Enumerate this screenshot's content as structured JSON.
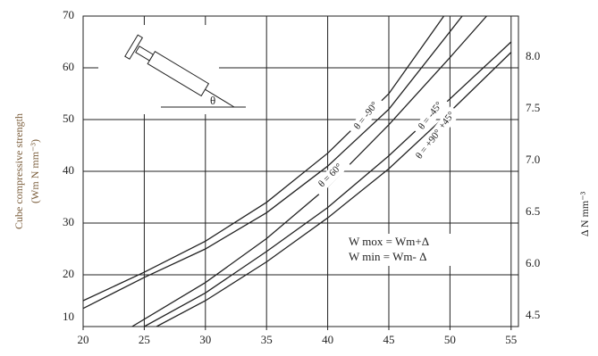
{
  "chart_data": {
    "type": "line",
    "y_label_line1": "Cube compressive strength",
    "y_label_line2": "(Wm N mm⁻³)",
    "y2_label": "Δ N mm⁻³",
    "xlim": [
      20,
      55.6
    ],
    "xticks": [
      20,
      25,
      30,
      35,
      40,
      45,
      50,
      55
    ],
    "ylim": [
      10,
      70
    ],
    "yticks": [
      10,
      20,
      30,
      40,
      50,
      60,
      70
    ],
    "delta_labels": [
      "4.5",
      "6.0",
      "6.5",
      "7.0",
      "7.5",
      "8.0"
    ],
    "grid": true,
    "annotation_line1": "W  mox = Wm+Δ",
    "annotation_line2": "W  min = Wm- Δ",
    "inset_angle_label": "θ",
    "series": [
      {
        "name": "θ = -90°",
        "color": "#222",
        "x": [
          20,
          25,
          30,
          35,
          40,
          45,
          49.5
        ],
        "values": [
          15,
          20.5,
          26.5,
          34,
          43.5,
          55,
          70
        ]
      },
      {
        "name": "θ = -45°",
        "color": "#222",
        "x": [
          20,
          25,
          30,
          35,
          40,
          45,
          51
        ],
        "values": [
          13.5,
          19.5,
          25,
          32,
          41,
          52,
          70
        ]
      },
      {
        "name": "θ = 60°",
        "color": "#222",
        "x": [
          24,
          30,
          35,
          40,
          45,
          50,
          53
        ],
        "values": [
          10,
          18.5,
          27,
          37,
          49,
          62,
          70
        ]
      },
      {
        "name": "θ = +45°",
        "color": "#222",
        "x": [
          25,
          30,
          35,
          40,
          45,
          50,
          55
        ],
        "values": [
          10,
          16.5,
          24.5,
          33,
          43,
          54,
          65
        ]
      },
      {
        "name": "θ = +90°",
        "color": "#222",
        "x": [
          26,
          30,
          35,
          40,
          45,
          50,
          55
        ],
        "values": [
          10,
          15,
          22.5,
          31,
          40.5,
          51.5,
          63
        ]
      }
    ]
  }
}
